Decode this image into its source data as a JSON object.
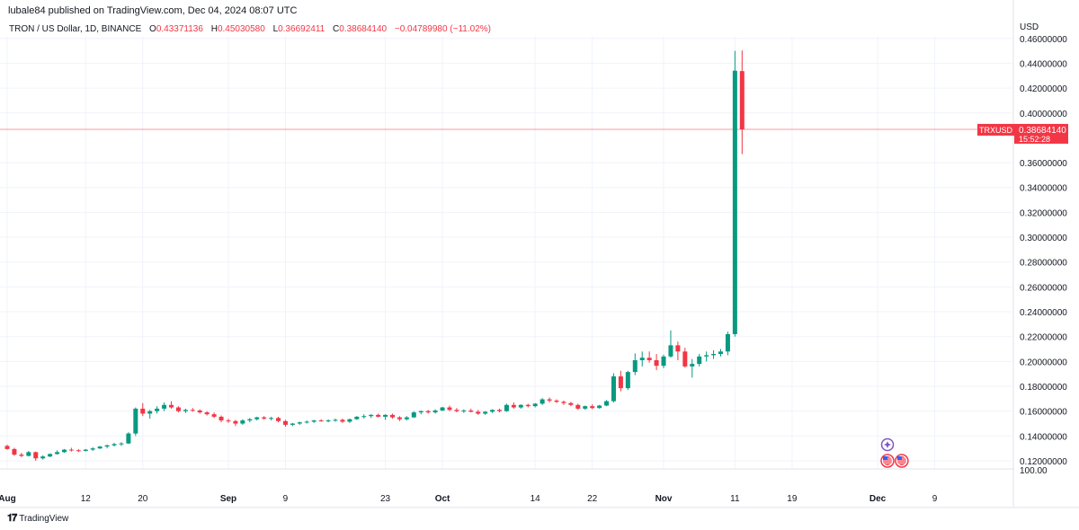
{
  "header": {
    "published": "lubale84 published on TradingView.com, Dec 04, 2024 08:07 UTC"
  },
  "legend": {
    "symbol": "TRON / US Dollar, 1D, BINANCE",
    "o_label": "O",
    "o_value": "0.43371136",
    "h_label": "H",
    "h_value": "0.45030580",
    "l_label": "L",
    "l_value": "0.36692411",
    "c_label": "C",
    "c_value": "0.38684140",
    "change": "−0.04789980 (−11.02%)"
  },
  "price_axis": {
    "currency": "USD"
  },
  "price_tag": {
    "symbol": "TRXUSD",
    "price": "0.38684140",
    "countdown": "15:52:28"
  },
  "footer": {
    "brand": "TradingView"
  },
  "colors": {
    "up": "#089981",
    "down": "#f23645",
    "grid": "#f0f3fa",
    "line": "#f23645"
  },
  "chart_data": {
    "type": "candlestick",
    "y_ticks": [
      "0.46000000",
      "0.44000000",
      "0.42000000",
      "0.40000000",
      "0.36000000",
      "0.34000000",
      "0.32000000",
      "0.30000000",
      "0.28000000",
      "0.26000000",
      "0.24000000",
      "0.22000000",
      "0.20000000",
      "0.18000000",
      "0.16000000",
      "0.14000000",
      "0.12000000"
    ],
    "y_tick_values": [
      0.46,
      0.44,
      0.42,
      0.4,
      0.36,
      0.34,
      0.32,
      0.3,
      0.28,
      0.26,
      0.24,
      0.22,
      0.2,
      0.18,
      0.16,
      0.14,
      0.12
    ],
    "y_bottom_label": "100.00",
    "ylim": [
      0.1135,
      0.462
    ],
    "x_labels": [
      {
        "label": "Aug",
        "day": 0,
        "bold": true
      },
      {
        "label": "12",
        "day": 11,
        "bold": false
      },
      {
        "label": "20",
        "day": 19,
        "bold": false
      },
      {
        "label": "Sep",
        "day": 31,
        "bold": true
      },
      {
        "label": "9",
        "day": 39,
        "bold": false
      },
      {
        "label": "23",
        "day": 53,
        "bold": false
      },
      {
        "label": "Oct",
        "day": 61,
        "bold": true
      },
      {
        "label": "14",
        "day": 74,
        "bold": false
      },
      {
        "label": "22",
        "day": 82,
        "bold": false
      },
      {
        "label": "Nov",
        "day": 92,
        "bold": true
      },
      {
        "label": "11",
        "day": 102,
        "bold": false
      },
      {
        "label": "19",
        "day": 110,
        "bold": false
      },
      {
        "label": "Dec",
        "day": 122,
        "bold": true
      },
      {
        "label": "9",
        "day": 130,
        "bold": false
      }
    ],
    "candles": [
      [
        0.132,
        0.133,
        0.129,
        0.1295
      ],
      [
        0.1295,
        0.1305,
        0.124,
        0.125
      ],
      [
        0.125,
        0.1265,
        0.123,
        0.124
      ],
      [
        0.124,
        0.128,
        0.1235,
        0.127
      ],
      [
        0.127,
        0.1275,
        0.12,
        0.122
      ],
      [
        0.122,
        0.1245,
        0.121,
        0.1235
      ],
      [
        0.1235,
        0.126,
        0.123,
        0.1255
      ],
      [
        0.1255,
        0.1285,
        0.125,
        0.127
      ],
      [
        0.127,
        0.1295,
        0.1265,
        0.129
      ],
      [
        0.129,
        0.1305,
        0.1275,
        0.1285
      ],
      [
        0.1285,
        0.1295,
        0.127,
        0.128
      ],
      [
        0.128,
        0.1295,
        0.1275,
        0.129
      ],
      [
        0.129,
        0.131,
        0.128,
        0.13
      ],
      [
        0.13,
        0.132,
        0.1295,
        0.1315
      ],
      [
        0.1315,
        0.133,
        0.13,
        0.1325
      ],
      [
        0.1325,
        0.1345,
        0.1315,
        0.1335
      ],
      [
        0.1335,
        0.135,
        0.132,
        0.134
      ],
      [
        0.134,
        0.143,
        0.1335,
        0.142
      ],
      [
        0.142,
        0.163,
        0.14,
        0.162
      ],
      [
        0.162,
        0.1665,
        0.156,
        0.158
      ],
      [
        0.158,
        0.161,
        0.154,
        0.16
      ],
      [
        0.16,
        0.164,
        0.158,
        0.162
      ],
      [
        0.162,
        0.167,
        0.16,
        0.165
      ],
      [
        0.165,
        0.168,
        0.162,
        0.163
      ],
      [
        0.163,
        0.164,
        0.159,
        0.16
      ],
      [
        0.16,
        0.162,
        0.1585,
        0.161
      ],
      [
        0.161,
        0.1625,
        0.1595,
        0.1605
      ],
      [
        0.1605,
        0.1615,
        0.158,
        0.159
      ],
      [
        0.159,
        0.16,
        0.1565,
        0.1575
      ],
      [
        0.1575,
        0.159,
        0.1545,
        0.1555
      ],
      [
        0.1555,
        0.1565,
        0.151,
        0.1525
      ],
      [
        0.1525,
        0.154,
        0.1505,
        0.152
      ],
      [
        0.152,
        0.153,
        0.148,
        0.15
      ],
      [
        0.15,
        0.1535,
        0.149,
        0.1525
      ],
      [
        0.1525,
        0.1545,
        0.151,
        0.1535
      ],
      [
        0.1535,
        0.1555,
        0.1525,
        0.155
      ],
      [
        0.155,
        0.156,
        0.153,
        0.154
      ],
      [
        0.154,
        0.1555,
        0.1525,
        0.1545
      ],
      [
        0.1545,
        0.1555,
        0.151,
        0.152
      ],
      [
        0.152,
        0.153,
        0.1475,
        0.149
      ],
      [
        0.149,
        0.1505,
        0.148,
        0.15
      ],
      [
        0.15,
        0.1515,
        0.149,
        0.151
      ],
      [
        0.151,
        0.1525,
        0.15,
        0.1515
      ],
      [
        0.1515,
        0.153,
        0.1505,
        0.1525
      ],
      [
        0.1525,
        0.1535,
        0.1515,
        0.152
      ],
      [
        0.152,
        0.1535,
        0.151,
        0.1525
      ],
      [
        0.1525,
        0.154,
        0.1515,
        0.153
      ],
      [
        0.153,
        0.154,
        0.1505,
        0.1515
      ],
      [
        0.1515,
        0.154,
        0.1505,
        0.1535
      ],
      [
        0.1535,
        0.156,
        0.153,
        0.1555
      ],
      [
        0.1555,
        0.1575,
        0.154,
        0.156
      ],
      [
        0.156,
        0.1575,
        0.1545,
        0.157
      ],
      [
        0.157,
        0.158,
        0.155,
        0.1555
      ],
      [
        0.1555,
        0.1575,
        0.153,
        0.157
      ],
      [
        0.157,
        0.158,
        0.154,
        0.155
      ],
      [
        0.155,
        0.156,
        0.152,
        0.1535
      ],
      [
        0.1535,
        0.156,
        0.1525,
        0.155
      ],
      [
        0.155,
        0.16,
        0.1545,
        0.159
      ],
      [
        0.159,
        0.1605,
        0.1575,
        0.16
      ],
      [
        0.16,
        0.161,
        0.158,
        0.159
      ],
      [
        0.159,
        0.1615,
        0.158,
        0.1605
      ],
      [
        0.1605,
        0.1635,
        0.16,
        0.163
      ],
      [
        0.163,
        0.1645,
        0.16,
        0.161
      ],
      [
        0.161,
        0.1625,
        0.159,
        0.16
      ],
      [
        0.16,
        0.1615,
        0.1585,
        0.1605
      ],
      [
        0.1605,
        0.162,
        0.159,
        0.1595
      ],
      [
        0.1595,
        0.161,
        0.157,
        0.158
      ],
      [
        0.158,
        0.16,
        0.157,
        0.1595
      ],
      [
        0.1595,
        0.1615,
        0.1585,
        0.161
      ],
      [
        0.161,
        0.162,
        0.159,
        0.16
      ],
      [
        0.16,
        0.166,
        0.1595,
        0.165
      ],
      [
        0.165,
        0.167,
        0.162,
        0.163
      ],
      [
        0.163,
        0.1655,
        0.162,
        0.165
      ],
      [
        0.165,
        0.166,
        0.163,
        0.164
      ],
      [
        0.164,
        0.1665,
        0.163,
        0.166
      ],
      [
        0.166,
        0.1705,
        0.165,
        0.1695
      ],
      [
        0.1695,
        0.171,
        0.167,
        0.1685
      ],
      [
        0.1685,
        0.1695,
        0.1665,
        0.1675
      ],
      [
        0.1675,
        0.1685,
        0.165,
        0.1665
      ],
      [
        0.1665,
        0.1675,
        0.164,
        0.165
      ],
      [
        0.165,
        0.166,
        0.161,
        0.162
      ],
      [
        0.162,
        0.1645,
        0.161,
        0.164
      ],
      [
        0.164,
        0.1655,
        0.1615,
        0.1625
      ],
      [
        0.1625,
        0.165,
        0.162,
        0.1645
      ],
      [
        0.1645,
        0.169,
        0.164,
        0.168
      ],
      [
        0.168,
        0.1905,
        0.167,
        0.188
      ],
      [
        0.188,
        0.1925,
        0.176,
        0.1785
      ],
      [
        0.1785,
        0.1925,
        0.177,
        0.1915
      ],
      [
        0.1915,
        0.2065,
        0.189,
        0.201
      ],
      [
        0.201,
        0.208,
        0.196,
        0.203
      ],
      [
        0.203,
        0.208,
        0.199,
        0.201
      ],
      [
        0.201,
        0.206,
        0.193,
        0.1965
      ],
      [
        0.1965,
        0.2055,
        0.1945,
        0.204
      ],
      [
        0.204,
        0.225,
        0.203,
        0.213
      ],
      [
        0.213,
        0.216,
        0.201,
        0.208
      ],
      [
        0.208,
        0.211,
        0.195,
        0.196
      ],
      [
        0.196,
        0.202,
        0.187,
        0.198
      ],
      [
        0.198,
        0.206,
        0.196,
        0.204
      ],
      [
        0.204,
        0.208,
        0.2,
        0.205
      ],
      [
        0.205,
        0.209,
        0.202,
        0.206
      ],
      [
        0.206,
        0.21,
        0.204,
        0.208
      ],
      [
        0.208,
        0.224,
        0.205,
        0.222
      ],
      [
        0.222,
        0.45,
        0.22,
        0.434
      ],
      [
        0.4337,
        0.4503,
        0.3669,
        0.3868
      ]
    ],
    "candle_day_index": [
      0,
      1,
      2,
      3,
      4,
      5,
      6,
      7,
      8,
      9,
      10,
      11,
      12,
      13,
      14,
      15,
      16,
      17,
      18,
      19,
      20,
      21,
      22,
      23,
      24,
      25,
      26,
      27,
      28,
      29,
      30,
      31,
      32,
      33,
      34,
      35,
      36,
      37,
      38,
      39,
      40,
      41,
      42,
      43,
      44,
      45,
      46,
      47,
      48,
      49,
      50,
      51,
      52,
      53,
      54,
      55,
      56,
      57,
      58,
      59,
      60,
      61,
      62,
      63,
      64,
      65,
      66,
      67,
      68,
      69,
      70,
      71,
      72,
      73,
      74,
      75,
      76,
      77,
      78,
      79,
      80,
      81,
      82,
      83,
      84,
      85,
      86,
      87,
      88,
      89,
      90,
      91,
      92,
      93,
      94,
      95,
      96,
      97,
      98,
      99,
      100,
      101,
      102,
      103
    ],
    "current_price": 0.3868414,
    "event_markers": [
      {
        "icon": "sparkle-event-icon",
        "day": 123,
        "row": 1
      },
      {
        "icon": "us-flag-event-icon",
        "day": 123,
        "row": 2
      },
      {
        "icon": "us-flag-event-icon",
        "day": 125,
        "row": 2
      }
    ]
  }
}
